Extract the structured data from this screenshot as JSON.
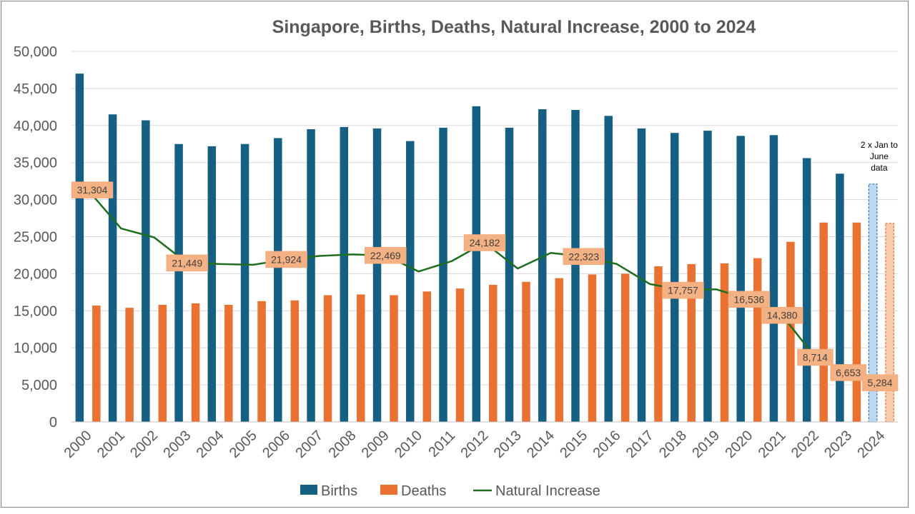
{
  "chart_data": {
    "type": "bar",
    "title": "Singapore, Births, Deaths, Natural Increase, 2000 to 2024",
    "xlabel": "",
    "ylabel": "",
    "ylim": [
      0,
      50000
    ],
    "y_ticks": [
      "0",
      "5,000",
      "10,000",
      "15,000",
      "20,000",
      "25,000",
      "30,000",
      "35,000",
      "40,000",
      "45,000",
      "50,000"
    ],
    "categories": [
      "2000",
      "2001",
      "2002",
      "2003",
      "2004",
      "2005",
      "2006",
      "2007",
      "2008",
      "2009",
      "2010",
      "2011",
      "2012",
      "2013",
      "2014",
      "2015",
      "2016",
      "2017",
      "2018",
      "2019",
      "2020",
      "2021",
      "2022",
      "2023",
      "2024"
    ],
    "grid": true,
    "legend_position": "bottom",
    "series": [
      {
        "name": "Births",
        "kind": "bar",
        "color": "#156082",
        "values": [
          47000,
          41500,
          40700,
          37500,
          37200,
          37500,
          38300,
          39500,
          39800,
          39600,
          37900,
          39700,
          42600,
          39700,
          42200,
          42100,
          41300,
          39600,
          39000,
          39300,
          38600,
          38700,
          35600,
          33500,
          32100
        ]
      },
      {
        "name": "Deaths",
        "kind": "bar",
        "color": "#E97132",
        "values": [
          15700,
          15400,
          15800,
          16000,
          15800,
          16300,
          16400,
          17100,
          17200,
          17100,
          17600,
          18000,
          18500,
          18900,
          19400,
          19900,
          20000,
          21000,
          21300,
          21400,
          22100,
          24300,
          26900,
          26900,
          26800
        ]
      },
      {
        "name": "Natural Increase",
        "kind": "line",
        "color": "#1E6E1E",
        "values": [
          31304,
          26100,
          24900,
          21449,
          21300,
          21200,
          21924,
          22400,
          22600,
          22469,
          20300,
          21700,
          24182,
          20700,
          22800,
          22323,
          21300,
          18600,
          17757,
          17900,
          16536,
          14380,
          8714,
          6653,
          5284
        ]
      }
    ],
    "data_labels": [
      {
        "category": "2000",
        "text": "31,304"
      },
      {
        "category": "2003",
        "text": "21,449"
      },
      {
        "category": "2006",
        "text": "21,924"
      },
      {
        "category": "2009",
        "text": "22,469"
      },
      {
        "category": "2012",
        "text": "24,182"
      },
      {
        "category": "2015",
        "text": "22,323"
      },
      {
        "category": "2018",
        "text": "17,757"
      },
      {
        "category": "2020",
        "text": "16,536"
      },
      {
        "category": "2021",
        "text": "14,380"
      },
      {
        "category": "2022",
        "text": "8,714"
      },
      {
        "category": "2023",
        "text": "6,653"
      },
      {
        "category": "2024",
        "text": "5,284"
      }
    ],
    "label_box_color": "#F4B183",
    "partial_year_category": "2024",
    "partial_year_colors": {
      "Births": "#BDD7EE",
      "Births_border": "#2E75B6",
      "Deaths": "#F8CBAD",
      "Deaths_border": "#E97132"
    },
    "annotation": {
      "category": "2024",
      "lines": [
        "2 x Jan to",
        "June",
        "data"
      ]
    }
  }
}
